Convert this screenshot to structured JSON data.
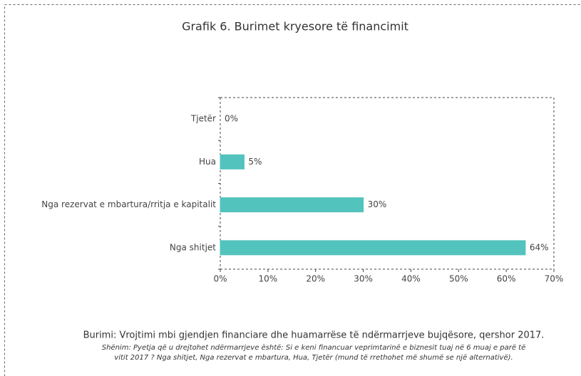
{
  "chart_data": {
    "type": "bar",
    "orientation": "horizontal",
    "title": "Grafik 6. Burimet kryesore të financimit",
    "categories": [
      "Tjetër",
      "Hua",
      "Nga rezervat e mbartura/rritja e kapitalit",
      "Nga shitjet"
    ],
    "values": [
      0,
      5,
      30,
      64
    ],
    "value_labels": [
      "0%",
      "5%",
      "30%",
      "64%"
    ],
    "color": "#53c3bd",
    "xlim": [
      0,
      70
    ],
    "xticks": [
      {
        "value": 0,
        "label": "0%"
      },
      {
        "value": 10,
        "label": "10%"
      },
      {
        "value": 20,
        "label": "20%"
      },
      {
        "value": 30,
        "label": "30%"
      },
      {
        "value": 40,
        "label": "40%"
      },
      {
        "value": 50,
        "label": "50%"
      },
      {
        "value": 60,
        "label": "60%"
      },
      {
        "value": 70,
        "label": "70%"
      }
    ],
    "grid": false,
    "source": "Burimi: Vrojtimi mbi gjendjen financiare dhe huamarrëse të ndërmarrjeve bujqësore, qershor 2017.",
    "note": [
      "Shënim: Pyetja që u drejtohet ndërmarrjeve është: Si e keni financuar veprimtarinë e biznesit tuaj në 6 muaj e parë të",
      "vitit 2017 ? Nga shitjet, Nga rezervat e mbartura, Hua, Tjetër (mund të rrethohet më shumë se një alternativë)."
    ]
  }
}
